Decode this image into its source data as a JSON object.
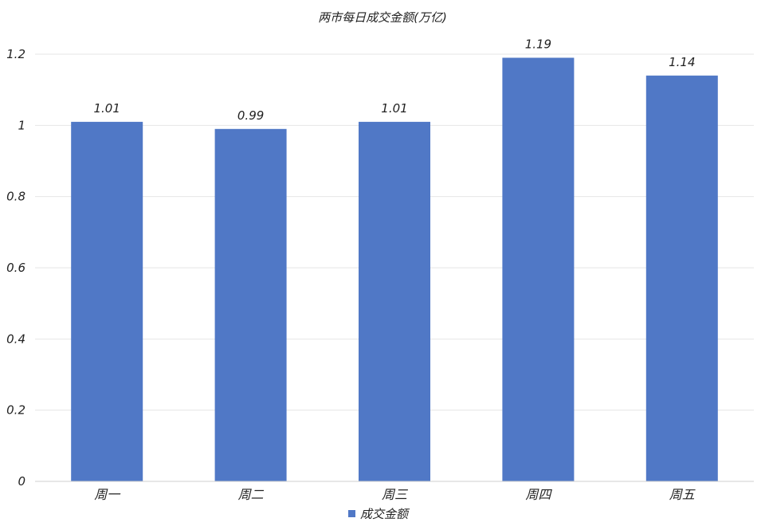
{
  "chart_data": {
    "type": "bar",
    "title": "两市每日成交金额(万亿)",
    "categories": [
      "周一",
      "周二",
      "周三",
      "周四",
      "周五"
    ],
    "series": [
      {
        "name": "成交金额",
        "values": [
          1.01,
          0.99,
          1.01,
          1.19,
          1.14
        ],
        "color": "#5078c6"
      }
    ],
    "data_labels": [
      "1.01",
      "0.99",
      "1.01",
      "1.19",
      "1.14"
    ],
    "yticks": [
      "0",
      "0.2",
      "0.4",
      "0.6",
      "0.8",
      "1",
      "1.2"
    ],
    "ylim": [
      0,
      1.2
    ],
    "grid": true,
    "legend_position": "bottom",
    "colors": {
      "grid": "#e6e6e6",
      "axis": "#cfcfcf",
      "text": "#222222"
    }
  }
}
